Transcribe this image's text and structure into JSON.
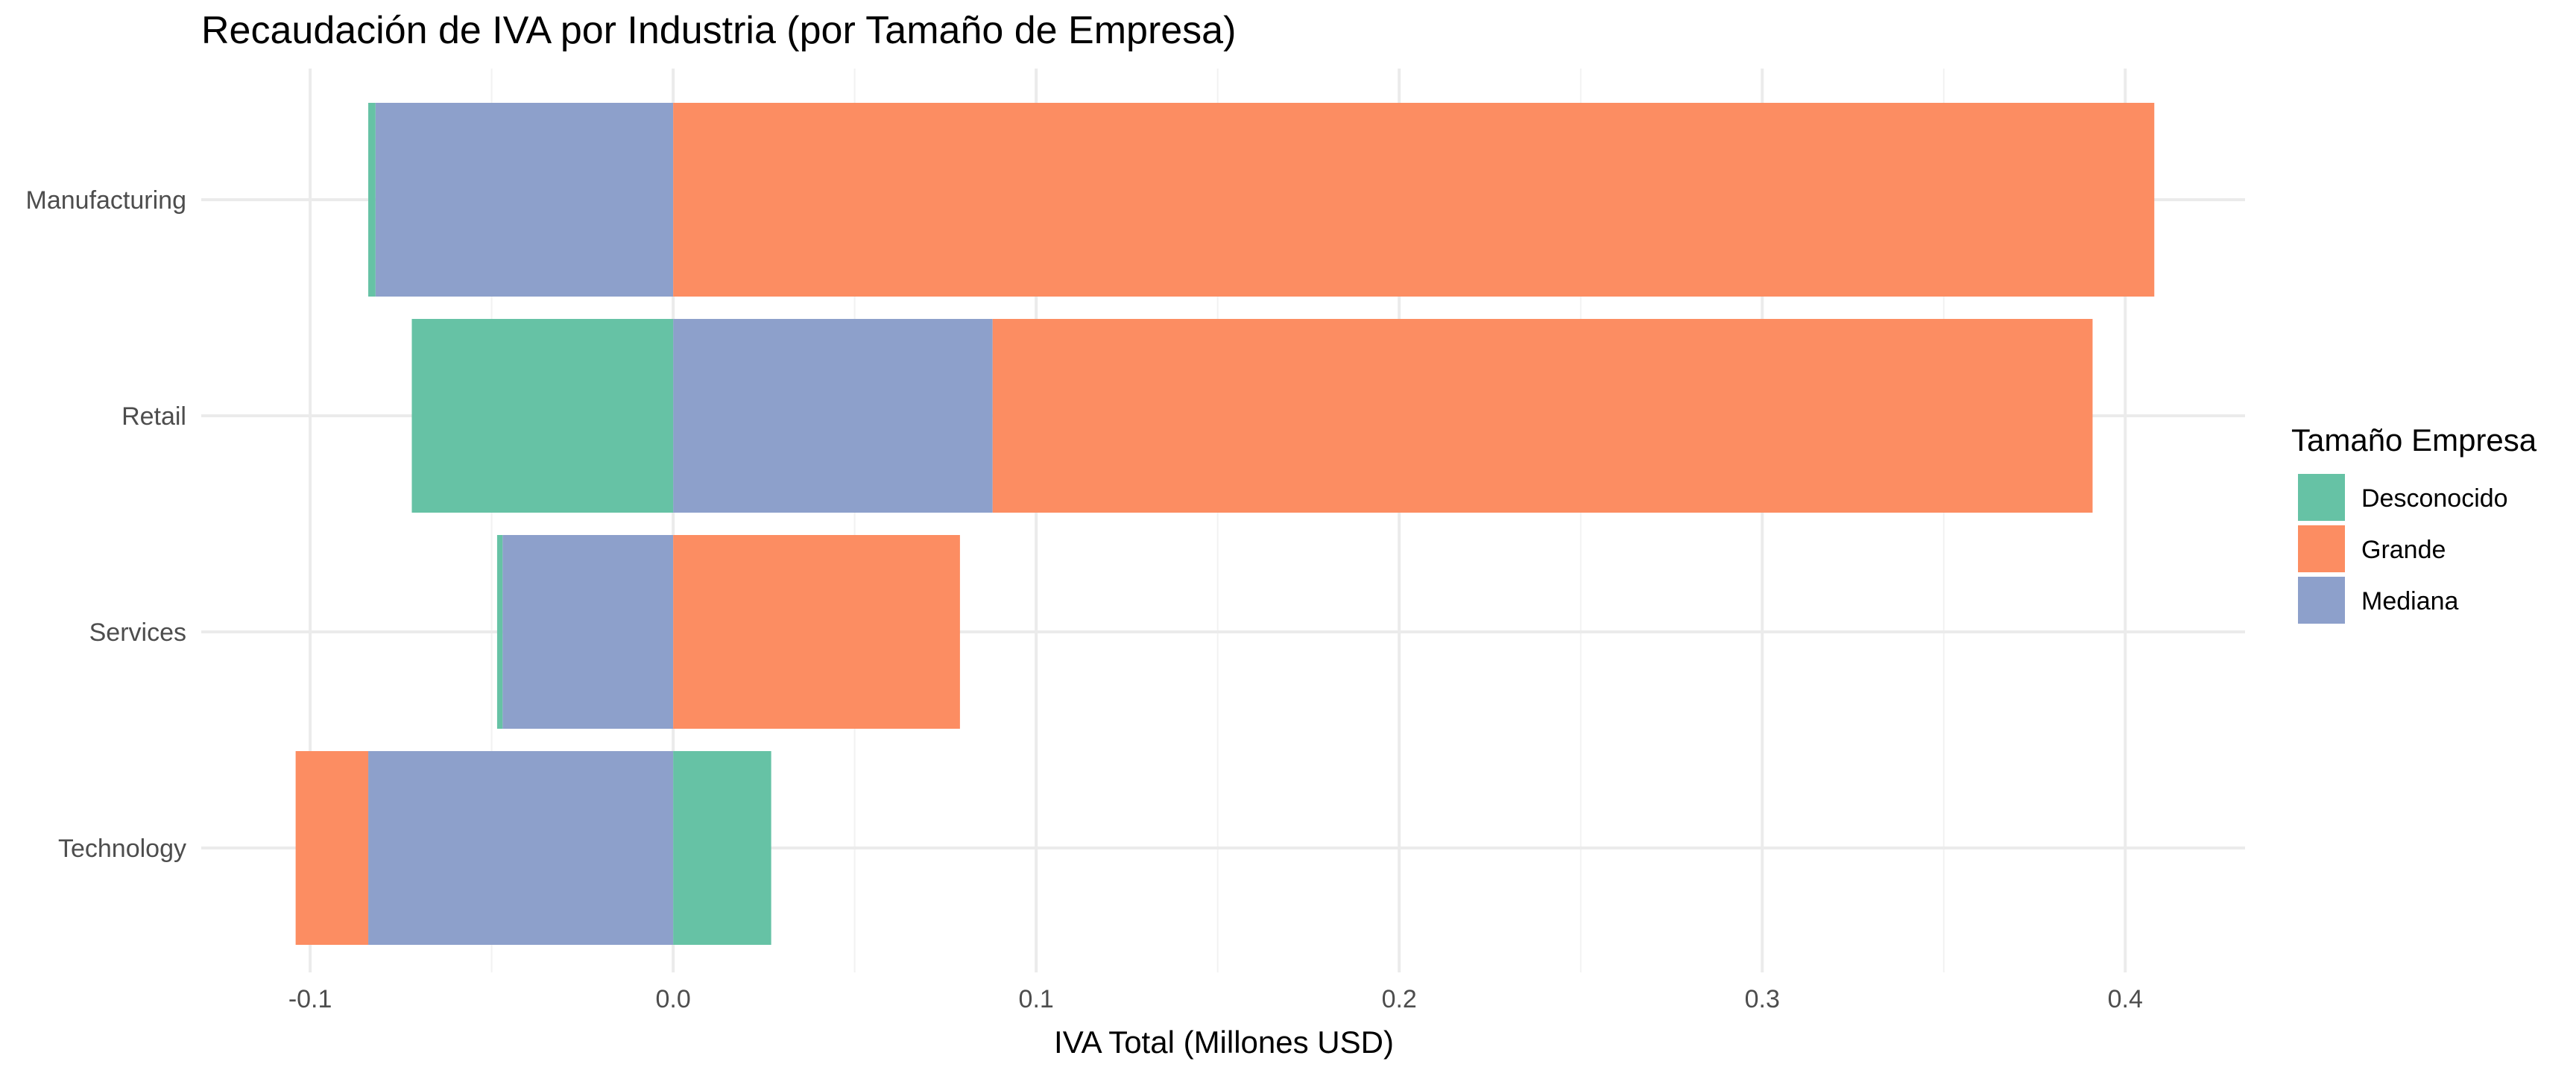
{
  "chart_data": {
    "type": "bar",
    "orientation": "horizontal",
    "stacked": true,
    "title": "Recaudación de IVA por Industria (por Tamaño de Empresa)",
    "xlabel": "IVA Total (Millones USD)",
    "ylabel": "",
    "xlim": [
      -0.13,
      0.433
    ],
    "x_ticks": [
      -0.1,
      0.0,
      0.1,
      0.2,
      0.3,
      0.4
    ],
    "x_tick_labels": [
      "-0.1",
      "0.0",
      "0.1",
      "0.2",
      "0.3",
      "0.4"
    ],
    "grid": true,
    "categories": [
      "Manufacturing",
      "Retail",
      "Services",
      "Technology"
    ],
    "legend": {
      "title": "Tamaño Empresa",
      "position": "right"
    },
    "series": [
      {
        "name": "Desconocido",
        "color": "#66c2a5",
        "values": [
          -0.002,
          -0.072,
          -0.0015,
          0.027
        ]
      },
      {
        "name": "Grande",
        "color": "#fc8d62",
        "values": [
          0.408,
          0.303,
          0.079,
          -0.02
        ]
      },
      {
        "name": "Mediana",
        "color": "#8da0cb",
        "values": [
          -0.082,
          0.088,
          -0.047,
          -0.084
        ]
      }
    ]
  }
}
